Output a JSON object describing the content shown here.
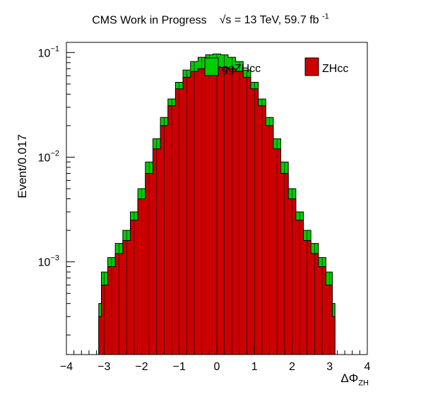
{
  "header": {
    "experiment": "CMS Work in Progress",
    "energy": "√s = 13 TeV, 59.7 fb",
    "energy_sup": "-1"
  },
  "chart_data": {
    "type": "area",
    "xlabel_main": "ΔΦ",
    "xlabel_sub": "ZH",
    "ylabel": "Event/0.017",
    "yscale": "log",
    "xlim": [
      -4,
      4
    ],
    "ylim": [
      0.00013,
      0.125
    ],
    "x_ticks": [
      "−4",
      "−3",
      "−2",
      "−1",
      "0",
      "1",
      "2",
      "3",
      "4"
    ],
    "x_tick_values": [
      -4,
      -3,
      -2,
      -1,
      0,
      1,
      2,
      3,
      4
    ],
    "y_ticks": [
      {
        "value": 0.1,
        "base": "10",
        "exp": "−1"
      },
      {
        "value": 0.01,
        "base": "10",
        "exp": "−2"
      },
      {
        "value": 0.001,
        "base": "10",
        "exp": "−3"
      }
    ],
    "legend_position": "top",
    "series": [
      {
        "name": "ggZHcc",
        "color": "#00cc00",
        "x": [
          -3.14,
          -3.0,
          -2.8,
          -2.6,
          -2.4,
          -2.2,
          -2.0,
          -1.8,
          -1.6,
          -1.4,
          -1.2,
          -1.0,
          -0.8,
          -0.6,
          -0.4,
          -0.2,
          0.0,
          0.2,
          0.4,
          0.6,
          0.8,
          1.0,
          1.2,
          1.4,
          1.6,
          1.8,
          2.0,
          2.2,
          2.4,
          2.6,
          2.8,
          3.0,
          3.14
        ],
        "values": [
          0.0004,
          0.0008,
          0.0011,
          0.0015,
          0.002,
          0.003,
          0.005,
          0.009,
          0.015,
          0.024,
          0.036,
          0.052,
          0.068,
          0.082,
          0.09,
          0.095,
          0.097,
          0.095,
          0.09,
          0.082,
          0.068,
          0.052,
          0.036,
          0.024,
          0.015,
          0.009,
          0.005,
          0.003,
          0.002,
          0.0015,
          0.0011,
          0.0008,
          0.0004
        ]
      },
      {
        "name": "ZHcc",
        "color": "#cc0000",
        "x": [
          -3.14,
          -3.0,
          -2.8,
          -2.6,
          -2.4,
          -2.2,
          -2.0,
          -1.8,
          -1.6,
          -1.4,
          -1.2,
          -1.0,
          -0.8,
          -0.6,
          -0.4,
          -0.2,
          0.0,
          0.2,
          0.4,
          0.6,
          0.8,
          1.0,
          1.2,
          1.4,
          1.6,
          1.8,
          2.0,
          2.2,
          2.4,
          2.6,
          2.8,
          3.0,
          3.14
        ],
        "values": [
          0.0003,
          0.0006,
          0.0009,
          0.0012,
          0.0016,
          0.0025,
          0.004,
          0.007,
          0.012,
          0.02,
          0.031,
          0.045,
          0.058,
          0.066,
          0.07,
          0.072,
          0.073,
          0.072,
          0.07,
          0.066,
          0.058,
          0.045,
          0.031,
          0.02,
          0.012,
          0.007,
          0.004,
          0.0025,
          0.0016,
          0.0012,
          0.0009,
          0.0006,
          0.0003
        ]
      }
    ]
  }
}
